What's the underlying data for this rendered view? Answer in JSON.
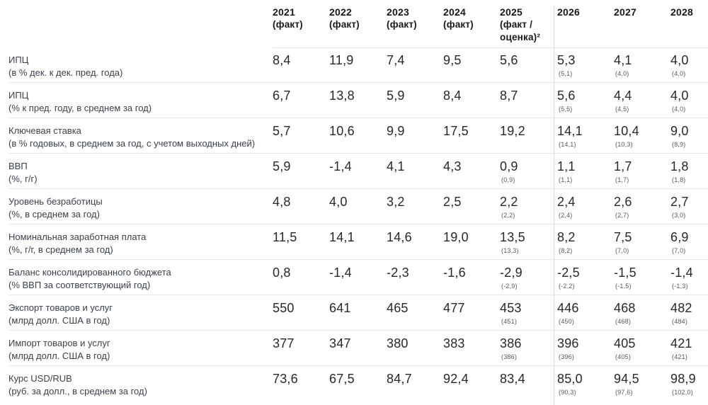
{
  "table": {
    "columns": [
      {
        "year": "2021",
        "note_lines": [
          "(факт)"
        ]
      },
      {
        "year": "2022",
        "note_lines": [
          "(факт)"
        ]
      },
      {
        "year": "2023",
        "note_lines": [
          "(факт)"
        ]
      },
      {
        "year": "2024",
        "note_lines": [
          "(факт)"
        ]
      },
      {
        "year": "2025",
        "note_lines": [
          "(факт /",
          "оценка)²"
        ]
      },
      {
        "year": "2026",
        "note_lines": []
      },
      {
        "year": "2027",
        "note_lines": []
      },
      {
        "year": "2028",
        "note_lines": []
      }
    ],
    "rows": [
      {
        "name": "ИПЦ",
        "unit": "(в % дек. к дек. пред. года)",
        "values": [
          {
            "main": "8,4"
          },
          {
            "main": "11,9"
          },
          {
            "main": "7,4"
          },
          {
            "main": "9,5"
          },
          {
            "main": "5,6"
          },
          {
            "main": "5,3",
            "sub": "(5,1)"
          },
          {
            "main": "4,1",
            "sub": "(4,0)"
          },
          {
            "main": "4,0",
            "sub": "(4,0)"
          }
        ]
      },
      {
        "name": "ИПЦ",
        "unit": "(% к пред. году, в среднем за год)",
        "values": [
          {
            "main": "6,7"
          },
          {
            "main": "13,8"
          },
          {
            "main": "5,9"
          },
          {
            "main": "8,4"
          },
          {
            "main": "8,7"
          },
          {
            "main": "5,6",
            "sub": "(5,5)"
          },
          {
            "main": "4,4",
            "sub": "(4,5)"
          },
          {
            "main": "4,0",
            "sub": "(4,0)"
          }
        ]
      },
      {
        "name": "Ключевая ставка",
        "unit": "(в % годовых, в среднем за год, с учетом выходных дней)",
        "values": [
          {
            "main": "5,7"
          },
          {
            "main": "10,6"
          },
          {
            "main": "9,9"
          },
          {
            "main": "17,5"
          },
          {
            "main": "19,2"
          },
          {
            "main": "14,1",
            "sub": "(14,1)"
          },
          {
            "main": "10,4",
            "sub": "(10,3)"
          },
          {
            "main": "9,0",
            "sub": "(8,9)"
          }
        ]
      },
      {
        "name": "ВВП",
        "unit": "(%, г/г)",
        "values": [
          {
            "main": "5,9"
          },
          {
            "main": "-1,4"
          },
          {
            "main": "4,1"
          },
          {
            "main": "4,3"
          },
          {
            "main": "0,9",
            "sub": "(0,9)"
          },
          {
            "main": "1,1",
            "sub": "(1,1)"
          },
          {
            "main": "1,7",
            "sub": "(1,7)"
          },
          {
            "main": "1,8",
            "sub": "(1,8)"
          }
        ]
      },
      {
        "name": "Уровень безработицы",
        "unit": "(%, в среднем за год)",
        "values": [
          {
            "main": "4,8"
          },
          {
            "main": "4,0"
          },
          {
            "main": "3,2"
          },
          {
            "main": "2,5"
          },
          {
            "main": "2,2",
            "sub": "(2,2)"
          },
          {
            "main": "2,4",
            "sub": "(2,4)"
          },
          {
            "main": "2,6",
            "sub": "(2,7)"
          },
          {
            "main": "2,7",
            "sub": "(3,0)"
          }
        ]
      },
      {
        "name": "Номинальная заработная плата",
        "unit": "(%, г/г, в среднем за год)",
        "values": [
          {
            "main": "11,5"
          },
          {
            "main": "14,1"
          },
          {
            "main": "14,6"
          },
          {
            "main": "19,0"
          },
          {
            "main": "13,5",
            "sub": "(13,3)"
          },
          {
            "main": "8,2",
            "sub": "(8,2)"
          },
          {
            "main": "7,5",
            "sub": "(7,0)"
          },
          {
            "main": "6,9",
            "sub": "(7,0)"
          }
        ]
      },
      {
        "name": "Баланс консолидированного бюджета",
        "unit": "(% ВВП за соответствующий год)",
        "values": [
          {
            "main": "0,8"
          },
          {
            "main": "-1,4"
          },
          {
            "main": "-2,3"
          },
          {
            "main": "-1,6"
          },
          {
            "main": "-2,9",
            "sub": "(-2,9)"
          },
          {
            "main": "-2,5",
            "sub": "(-2,2)"
          },
          {
            "main": "-1,5",
            "sub": "(-1,5)"
          },
          {
            "main": "-1,4",
            "sub": "(-1,3)"
          }
        ]
      },
      {
        "name": "Экспорт товаров и услуг",
        "unit": "(млрд долл. США в год)",
        "values": [
          {
            "main": "550"
          },
          {
            "main": "641"
          },
          {
            "main": "465"
          },
          {
            "main": "477"
          },
          {
            "main": "453",
            "sub": "(451)"
          },
          {
            "main": "446",
            "sub": "(450)"
          },
          {
            "main": "468",
            "sub": "(468)"
          },
          {
            "main": "482",
            "sub": "(484)"
          }
        ]
      },
      {
        "name": "Импорт товаров и услуг",
        "unit": "(млрд долл. США в год)",
        "values": [
          {
            "main": "377"
          },
          {
            "main": "347"
          },
          {
            "main": "380"
          },
          {
            "main": "383"
          },
          {
            "main": "386",
            "sub": "(386)"
          },
          {
            "main": "396",
            "sub": "(396)"
          },
          {
            "main": "405",
            "sub": "(405)"
          },
          {
            "main": "421",
            "sub": "(421)"
          }
        ]
      },
      {
        "name": "Курс USD/RUB",
        "unit": "(руб. за долл., в среднем за год)",
        "values": [
          {
            "main": "73,6"
          },
          {
            "main": "67,5"
          },
          {
            "main": "84,7"
          },
          {
            "main": "92,4"
          },
          {
            "main": "83,4"
          },
          {
            "main": "85,0",
            "sub": "(90,3)"
          },
          {
            "main": "94,5",
            "sub": "(97,6)"
          },
          {
            "main": "98,9",
            "sub": "(102,0)"
          }
        ]
      }
    ],
    "colors": {
      "header_text": "#17181a",
      "label_text": "#3c4149",
      "value_text": "#26282c",
      "sub_value_text": "#55585c",
      "row_separator": "#e8e8ea",
      "forecast_divider": "#d7d7d9",
      "background": "#ffffff"
    }
  }
}
